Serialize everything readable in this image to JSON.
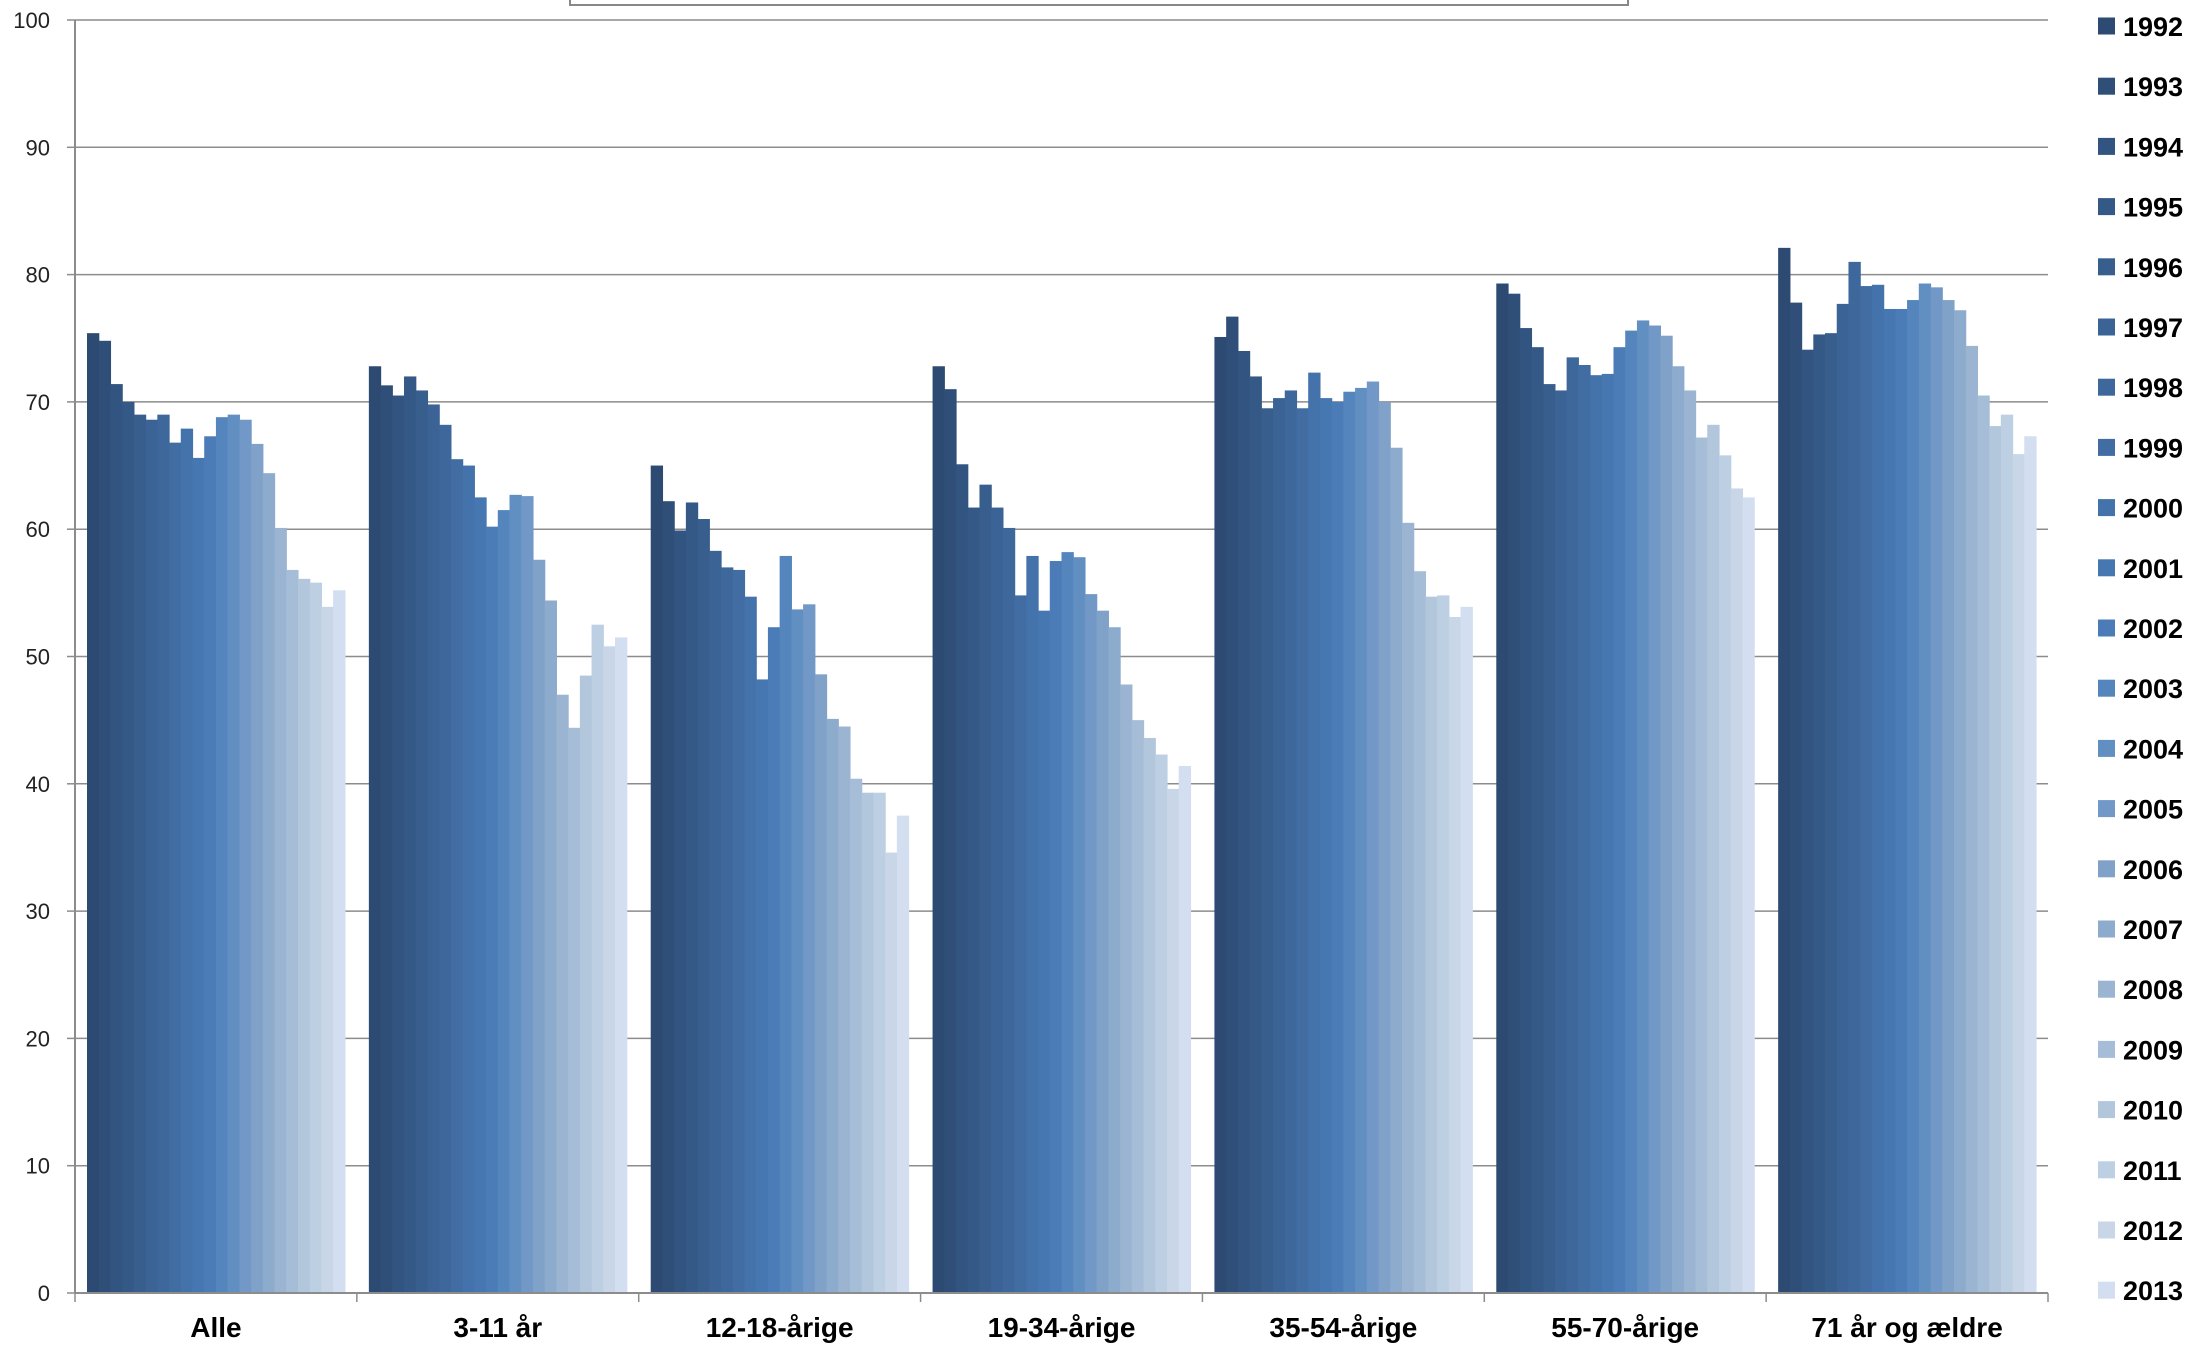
{
  "chart_data": {
    "type": "bar",
    "title": "",
    "xlabel": "",
    "ylabel": "",
    "ylim": [
      0,
      100
    ],
    "yticks": [
      0,
      10,
      20,
      30,
      40,
      50,
      60,
      70,
      80,
      90,
      100
    ],
    "grid": true,
    "legend_position": "right",
    "categories": [
      "Alle",
      "3-11 år",
      "12-18-årige",
      "19-34-årige",
      "35-54-årige",
      "55-70-årige",
      "71 år og ældre"
    ],
    "series": [
      {
        "name": "1992",
        "color": "#2c4a72",
        "values": [
          75.4,
          72.8,
          65.0,
          72.8,
          75.1,
          79.3,
          82.1
        ]
      },
      {
        "name": "1993",
        "color": "#2f4f79",
        "values": [
          74.8,
          71.3,
          62.2,
          71.0,
          76.7,
          78.5,
          77.8
        ]
      },
      {
        "name": "1994",
        "color": "#325480",
        "values": [
          71.4,
          70.5,
          59.9,
          65.1,
          74.0,
          75.8,
          74.1
        ]
      },
      {
        "name": "1995",
        "color": "#355987",
        "values": [
          70.0,
          72.0,
          62.1,
          61.7,
          72.0,
          74.3,
          75.3
        ]
      },
      {
        "name": "1996",
        "color": "#385e8e",
        "values": [
          69.0,
          70.9,
          60.8,
          63.5,
          69.5,
          71.4,
          75.4
        ]
      },
      {
        "name": "1997",
        "color": "#3b6395",
        "values": [
          68.6,
          69.8,
          58.3,
          61.7,
          70.3,
          70.9,
          77.7
        ]
      },
      {
        "name": "1998",
        "color": "#3e689c",
        "values": [
          69.0,
          68.2,
          57.0,
          60.1,
          70.9,
          73.5,
          81.0
        ]
      },
      {
        "name": "1999",
        "color": "#416da3",
        "values": [
          66.8,
          65.5,
          56.8,
          54.8,
          69.5,
          72.9,
          79.1
        ]
      },
      {
        "name": "2000",
        "color": "#4472aa",
        "values": [
          67.9,
          65.0,
          54.7,
          57.9,
          72.3,
          72.1,
          79.2
        ]
      },
      {
        "name": "2001",
        "color": "#4777b1",
        "values": [
          65.6,
          62.5,
          48.2,
          53.6,
          70.3,
          72.2,
          77.3
        ]
      },
      {
        "name": "2002",
        "color": "#4b7cb7",
        "values": [
          67.3,
          60.2,
          52.3,
          57.5,
          70.0,
          74.3,
          77.3
        ]
      },
      {
        "name": "2003",
        "color": "#5585bd",
        "values": [
          68.8,
          61.5,
          57.9,
          58.2,
          70.8,
          75.6,
          78.0
        ]
      },
      {
        "name": "2004",
        "color": "#628fc2",
        "values": [
          69.0,
          62.7,
          53.7,
          57.8,
          71.1,
          76.4,
          79.3
        ]
      },
      {
        "name": "2005",
        "color": "#7198c6",
        "values": [
          68.6,
          62.6,
          54.1,
          54.9,
          71.6,
          76.0,
          79.0
        ]
      },
      {
        "name": "2006",
        "color": "#80a2c9",
        "values": [
          66.7,
          57.6,
          48.6,
          53.6,
          70.0,
          75.2,
          78.0
        ]
      },
      {
        "name": "2007",
        "color": "#8dabcd",
        "values": [
          64.4,
          54.4,
          45.1,
          52.3,
          66.4,
          72.8,
          77.2
        ]
      },
      {
        "name": "2008",
        "color": "#9ab4d2",
        "values": [
          60.1,
          47.0,
          44.5,
          47.8,
          60.5,
          70.9,
          74.4
        ]
      },
      {
        "name": "2009",
        "color": "#a6bdd7",
        "values": [
          56.8,
          44.4,
          40.4,
          45.0,
          56.7,
          67.2,
          70.5
        ]
      },
      {
        "name": "2010",
        "color": "#b2c6dc",
        "values": [
          56.1,
          48.5,
          39.3,
          43.6,
          54.7,
          68.2,
          68.1
        ]
      },
      {
        "name": "2011",
        "color": "#bdcfe2",
        "values": [
          55.8,
          52.5,
          39.3,
          42.3,
          54.8,
          65.8,
          69.0
        ]
      },
      {
        "name": "2012",
        "color": "#c8d6e8",
        "values": [
          53.9,
          50.8,
          34.6,
          39.6,
          53.1,
          63.2,
          65.9
        ]
      },
      {
        "name": "2013",
        "color": "#d3def0",
        "values": [
          55.2,
          51.5,
          37.5,
          41.4,
          53.9,
          62.5,
          67.3
        ]
      }
    ]
  }
}
